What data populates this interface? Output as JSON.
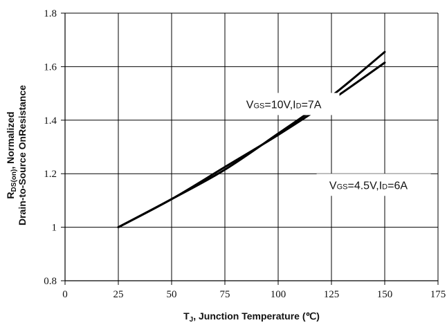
{
  "chart_data": {
    "type": "line",
    "title": "",
    "xlabel": "T_J, Junction Temperature (℃)",
    "xlabel_main": "T",
    "xlabel_sub": "J",
    "xlabel_rest": ", Junction Temperature (℃)",
    "ylabel_line1": "R_DS(on), Normalized",
    "ylabel_line1_main": "R",
    "ylabel_line1_sub": "DS(on)",
    "ylabel_line1_rest": ", Normalized",
    "ylabel_line2": "Drain-to-Source OnResistance",
    "xlim": [
      0,
      175
    ],
    "ylim": [
      0.8,
      1.8
    ],
    "x_ticks": [
      0,
      25,
      50,
      75,
      100,
      125,
      150,
      175
    ],
    "x_tick_labels": [
      "0",
      "25",
      "50",
      "75",
      "100",
      "125",
      "150",
      "175"
    ],
    "y_ticks": [
      0.8,
      1.0,
      1.2,
      1.4,
      1.6,
      1.8
    ],
    "y_tick_labels": [
      "0.8",
      "1",
      "1.2",
      "1.4",
      "1.6",
      "1.8"
    ],
    "grid": true,
    "series": [
      {
        "annotation_text": "VGS=10V,ID=7A",
        "annotation_parts": [
          "V",
          "GS",
          "=10V,I",
          "D",
          "=7A"
        ],
        "x": [
          25,
          50,
          75,
          100,
          125,
          150
        ],
        "y": [
          1.0,
          1.105,
          1.215,
          1.35,
          1.49,
          1.655
        ],
        "color": "#000000"
      },
      {
        "annotation_text": "VGS=4.5V,ID=6A",
        "annotation_parts": [
          "V",
          "GS",
          "=4.5V,I",
          "D",
          "=6A"
        ],
        "x": [
          25,
          50,
          75,
          100,
          125,
          150
        ],
        "y": [
          1.0,
          1.105,
          1.225,
          1.345,
          1.475,
          1.615
        ],
        "color": "#000000"
      }
    ]
  }
}
